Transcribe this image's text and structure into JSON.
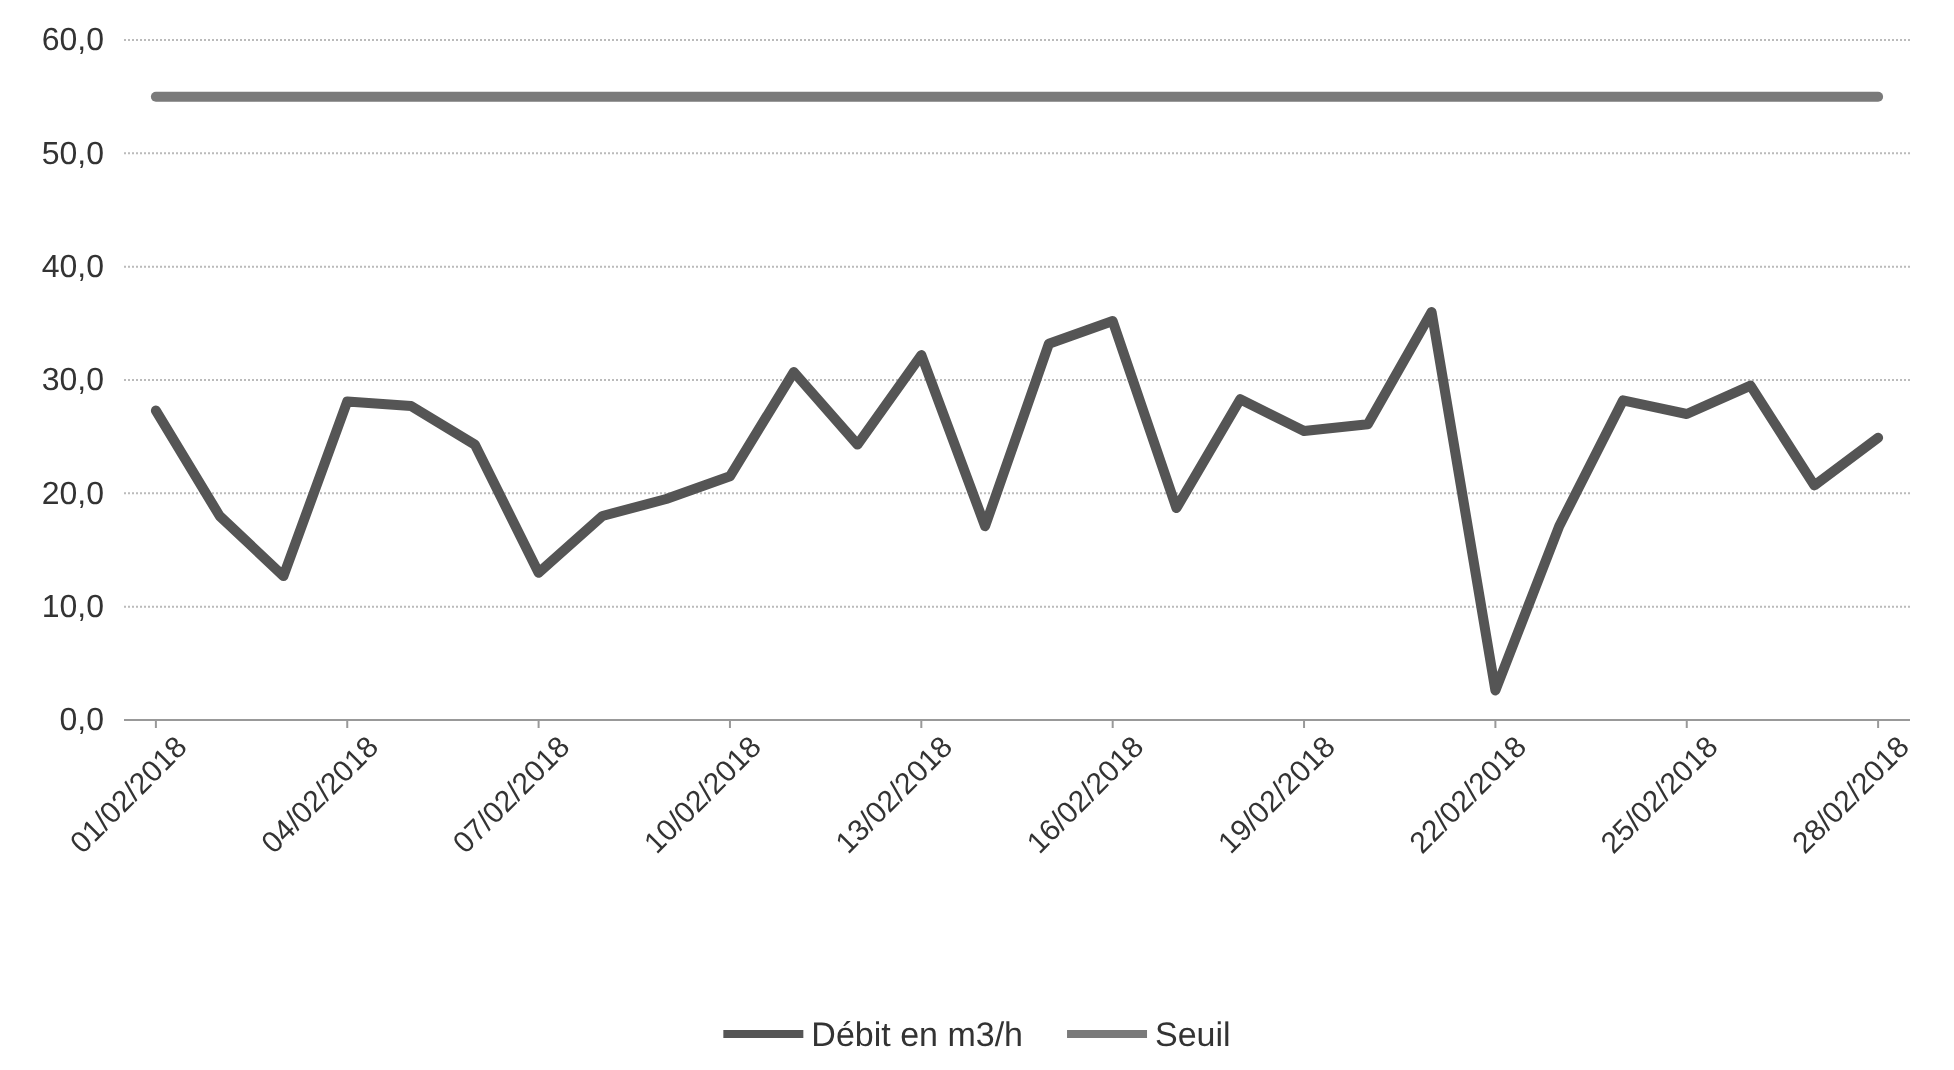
{
  "chart_data": {
    "type": "line",
    "x": [
      "2018-02-01",
      "2018-02-02",
      "2018-02-03",
      "2018-02-04",
      "2018-02-05",
      "2018-02-06",
      "2018-02-07",
      "2018-02-08",
      "2018-02-09",
      "2018-02-10",
      "2018-02-11",
      "2018-02-12",
      "2018-02-13",
      "2018-02-14",
      "2018-02-15",
      "2018-02-16",
      "2018-02-17",
      "2018-02-18",
      "2018-02-19",
      "2018-02-20",
      "2018-02-21",
      "2018-02-22",
      "2018-02-23",
      "2018-02-24",
      "2018-02-25",
      "2018-02-26",
      "2018-02-27",
      "2018-02-28"
    ],
    "series": [
      {
        "name": "Débit en m3/h",
        "color": "#555555",
        "values": [
          27.3,
          18.0,
          12.7,
          28.1,
          27.7,
          24.3,
          13.0,
          18.0,
          19.5,
          21.5,
          30.7,
          24.3,
          32.2,
          17.1,
          33.2,
          35.2,
          18.7,
          28.3,
          25.5,
          26.1,
          36.0,
          2.6,
          17.1,
          28.2,
          27.0,
          29.5,
          20.7,
          24.9
        ]
      },
      {
        "name": "Seuil",
        "color": "#7a7a7a",
        "values": [
          55,
          55,
          55,
          55,
          55,
          55,
          55,
          55,
          55,
          55,
          55,
          55,
          55,
          55,
          55,
          55,
          55,
          55,
          55,
          55,
          55,
          55,
          55,
          55,
          55,
          55,
          55,
          55
        ]
      }
    ],
    "xlim": [
      "2018-01-31T12:00",
      "2018-02-28T12:00"
    ],
    "xticks": [
      {
        "value": "2018-02-01",
        "label": "01/02/2018"
      },
      {
        "value": "2018-02-04",
        "label": "04/02/2018"
      },
      {
        "value": "2018-02-07",
        "label": "07/02/2018"
      },
      {
        "value": "2018-02-10",
        "label": "10/02/2018"
      },
      {
        "value": "2018-02-13",
        "label": "13/02/2018"
      },
      {
        "value": "2018-02-16",
        "label": "16/02/2018"
      },
      {
        "value": "2018-02-19",
        "label": "19/02/2018"
      },
      {
        "value": "2018-02-22",
        "label": "22/02/2018"
      },
      {
        "value": "2018-02-25",
        "label": "25/02/2018"
      },
      {
        "value": "2018-02-28",
        "label": "28/02/2018"
      }
    ],
    "ylim": [
      0,
      60
    ],
    "yticks": [
      {
        "value": 0,
        "label": "0,0"
      },
      {
        "value": 10,
        "label": "10,0"
      },
      {
        "value": 20,
        "label": "20,0"
      },
      {
        "value": 30,
        "label": "30,0"
      },
      {
        "value": 40,
        "label": "40,0"
      },
      {
        "value": 50,
        "label": "50,0"
      },
      {
        "value": 60,
        "label": "60,0"
      }
    ],
    "grid": "y",
    "legend": "bottom",
    "marker": "none",
    "line_style": "solid"
  }
}
